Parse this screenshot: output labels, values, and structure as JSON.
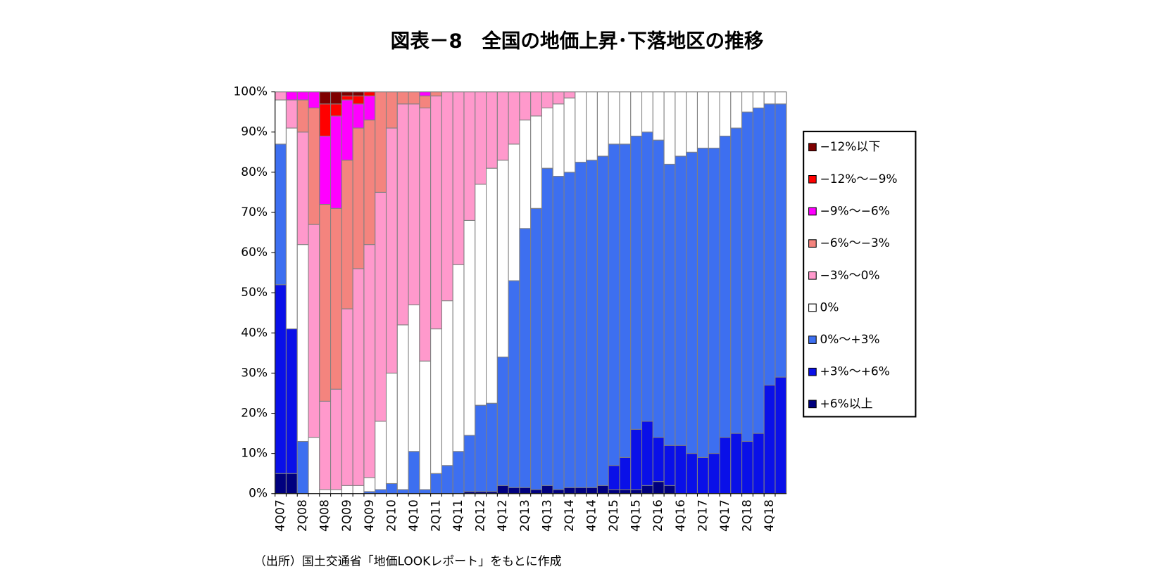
{
  "chart_data": {
    "type": "stacked_bar",
    "title": "図表－8　全国の地価上昇･下落地区の推移",
    "footnote": "（出所）国土交通省「地価LOOKレポート」をもとに作成",
    "categories": [
      "4Q07",
      null,
      "2Q08",
      null,
      "4Q08",
      null,
      "2Q09",
      null,
      "4Q09",
      null,
      "2Q10",
      null,
      "4Q10",
      null,
      "2Q11",
      null,
      "4Q11",
      null,
      "2Q12",
      null,
      "4Q12",
      null,
      "2Q13",
      null,
      "4Q13",
      null,
      "2Q14",
      null,
      "4Q14",
      null,
      "2Q15",
      null,
      "4Q15",
      null,
      "2Q16",
      null,
      "4Q16",
      null,
      "2Q17",
      null,
      "4Q17",
      null,
      "2Q18",
      null,
      "4Q18",
      null
    ],
    "ylim": [
      0,
      100
    ],
    "yticks": [
      {
        "value": 0,
        "label": "0%"
      },
      {
        "value": 10,
        "label": "10%"
      },
      {
        "value": 20,
        "label": "20%"
      },
      {
        "value": 30,
        "label": "30%"
      },
      {
        "value": 40,
        "label": "40%"
      },
      {
        "value": 50,
        "label": "50%"
      },
      {
        "value": 60,
        "label": "60%"
      },
      {
        "value": 70,
        "label": "70%"
      },
      {
        "value": 80,
        "label": "80%"
      },
      {
        "value": 90,
        "label": "90%"
      },
      {
        "value": 100,
        "label": "100%"
      }
    ],
    "legend": "right",
    "series": [
      {
        "name": "−12%以下",
        "color": "#7f0000",
        "values": [
          0,
          0,
          0,
          0,
          3,
          3,
          1,
          1,
          0,
          0,
          0,
          0,
          0,
          0,
          0,
          0,
          0,
          0,
          0,
          0,
          0,
          0,
          0,
          0,
          0,
          0,
          0,
          0,
          0,
          0,
          0,
          0,
          0,
          0,
          0,
          0,
          0,
          0,
          0,
          0,
          0,
          0,
          0,
          0,
          0,
          0
        ]
      },
      {
        "name": "−12%〜−9%",
        "color": "#ff0000",
        "values": [
          0,
          0,
          0,
          0,
          8,
          3,
          1,
          2,
          1,
          0,
          0,
          0,
          0,
          0,
          0,
          0,
          0,
          0,
          0,
          0,
          0,
          0,
          0,
          0,
          0,
          0,
          0,
          0,
          0,
          0,
          0,
          0,
          0,
          0,
          0,
          0,
          0,
          0,
          0,
          0,
          0,
          0,
          0,
          0,
          0,
          0
        ]
      },
      {
        "name": "−9%〜−6%",
        "color": "#ff00ff",
        "values": [
          0,
          2,
          2,
          4,
          17,
          23,
          15,
          6,
          6,
          0,
          0,
          0,
          0,
          1,
          0,
          0,
          0,
          0,
          0,
          0,
          0,
          0,
          0,
          0,
          0,
          0,
          0,
          0,
          0,
          0,
          0,
          0,
          0,
          0,
          0,
          0,
          0,
          0,
          0,
          0,
          0,
          0,
          0,
          0,
          0,
          0
        ]
      },
      {
        "name": "−6%〜−3%",
        "color": "#f4847e",
        "values": [
          0,
          0,
          8,
          29,
          49,
          45,
          37,
          35,
          31,
          25,
          9,
          3,
          3,
          3,
          1,
          0,
          0,
          0,
          0,
          0,
          0,
          0,
          0,
          0,
          0,
          0,
          0,
          0,
          0,
          0,
          0,
          0,
          0,
          0,
          0,
          0,
          0,
          0,
          0,
          0,
          0,
          0,
          0,
          0,
          0,
          0
        ]
      },
      {
        "name": "−3%〜0%",
        "color": "#ff99cc",
        "values": [
          2,
          7,
          28,
          53,
          22,
          25,
          44,
          54,
          58,
          57,
          61,
          55,
          50,
          63,
          58,
          52,
          43,
          32,
          23,
          19,
          17,
          13,
          7,
          6,
          4,
          3,
          1.5,
          0,
          0,
          0,
          0,
          0,
          0,
          0,
          0,
          0,
          0,
          0,
          0,
          0,
          0,
          0,
          0,
          0,
          0,
          0
        ]
      },
      {
        "name": "0%",
        "color": "#ffffff",
        "values": [
          11,
          50,
          49,
          14,
          1,
          1,
          2,
          2,
          3.5,
          17,
          27.5,
          41,
          36.5,
          32,
          36,
          41,
          46.5,
          53.5,
          55,
          58.5,
          49,
          34,
          27,
          23,
          15,
          18,
          18.5,
          17.5,
          17,
          16,
          13,
          13,
          11,
          10,
          12,
          18,
          16,
          15,
          14,
          14,
          11,
          9,
          5,
          4,
          3,
          3
        ]
      },
      {
        "name": "0%〜+3%",
        "color": "#3d6ff0",
        "values": [
          35,
          0,
          13,
          0,
          0,
          0,
          0,
          0,
          0.5,
          1,
          2.5,
          1,
          10.5,
          1,
          5,
          7,
          10.5,
          14,
          21.5,
          22,
          32,
          51.5,
          64.5,
          70,
          79,
          78,
          78.5,
          81,
          81.5,
          82,
          80,
          78,
          73,
          72,
          74,
          70,
          72,
          75,
          77,
          76,
          75,
          76,
          82,
          81,
          70,
          68
        ]
      },
      {
        "name": "+3%〜+6%",
        "color": "#0a10e8",
        "values": [
          47,
          36,
          0,
          0,
          0,
          0,
          0,
          0,
          0,
          0,
          0,
          0,
          0,
          0,
          0,
          0,
          0,
          0,
          0,
          0,
          0,
          0,
          0,
          0,
          0,
          0,
          0,
          0,
          0,
          0,
          6,
          8,
          15,
          16,
          11,
          10,
          12,
          10,
          9,
          10,
          14,
          15,
          13,
          15,
          27,
          29
        ]
      },
      {
        "name": "+6%以上",
        "color": "#00007f",
        "values": [
          5,
          5,
          0,
          0,
          0,
          0,
          0,
          0,
          0,
          0,
          0,
          0,
          0,
          0,
          0,
          0,
          0,
          0.5,
          0.5,
          0.5,
          2,
          1.5,
          1.5,
          1,
          2,
          1,
          1.5,
          1.5,
          1.5,
          2,
          1,
          1,
          1,
          2,
          3,
          2,
          0,
          0,
          0,
          0,
          0,
          0,
          0,
          0,
          0,
          0
        ]
      }
    ]
  }
}
